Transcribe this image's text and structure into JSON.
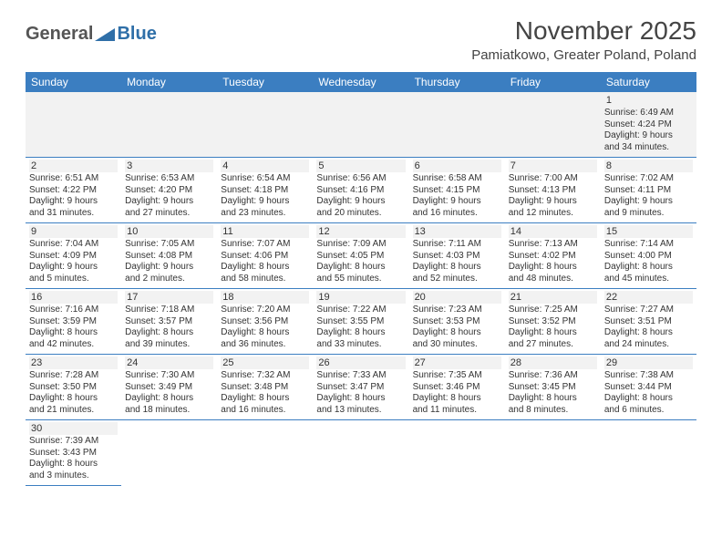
{
  "logo": {
    "text1": "General",
    "text2": "Blue"
  },
  "header": {
    "title": "November 2025",
    "location": "Pamiatkowo, Greater Poland, Poland"
  },
  "colors": {
    "header_bg": "#3b7ec1",
    "header_text": "#ffffff",
    "row_border": "#3b7ec1",
    "daynum_bg": "#f2f2f2",
    "text": "#333333",
    "logo_blue": "#2f6fa8",
    "logo_gray": "#555555",
    "page_bg": "#ffffff"
  },
  "day_names": [
    "Sunday",
    "Monday",
    "Tuesday",
    "Wednesday",
    "Thursday",
    "Friday",
    "Saturday"
  ],
  "weeks": [
    [
      null,
      null,
      null,
      null,
      null,
      null,
      {
        "n": "1",
        "sr": "Sunrise: 6:49 AM",
        "ss": "Sunset: 4:24 PM",
        "d1": "Daylight: 9 hours",
        "d2": "and 34 minutes."
      }
    ],
    [
      {
        "n": "2",
        "sr": "Sunrise: 6:51 AM",
        "ss": "Sunset: 4:22 PM",
        "d1": "Daylight: 9 hours",
        "d2": "and 31 minutes."
      },
      {
        "n": "3",
        "sr": "Sunrise: 6:53 AM",
        "ss": "Sunset: 4:20 PM",
        "d1": "Daylight: 9 hours",
        "d2": "and 27 minutes."
      },
      {
        "n": "4",
        "sr": "Sunrise: 6:54 AM",
        "ss": "Sunset: 4:18 PM",
        "d1": "Daylight: 9 hours",
        "d2": "and 23 minutes."
      },
      {
        "n": "5",
        "sr": "Sunrise: 6:56 AM",
        "ss": "Sunset: 4:16 PM",
        "d1": "Daylight: 9 hours",
        "d2": "and 20 minutes."
      },
      {
        "n": "6",
        "sr": "Sunrise: 6:58 AM",
        "ss": "Sunset: 4:15 PM",
        "d1": "Daylight: 9 hours",
        "d2": "and 16 minutes."
      },
      {
        "n": "7",
        "sr": "Sunrise: 7:00 AM",
        "ss": "Sunset: 4:13 PM",
        "d1": "Daylight: 9 hours",
        "d2": "and 12 minutes."
      },
      {
        "n": "8",
        "sr": "Sunrise: 7:02 AM",
        "ss": "Sunset: 4:11 PM",
        "d1": "Daylight: 9 hours",
        "d2": "and 9 minutes."
      }
    ],
    [
      {
        "n": "9",
        "sr": "Sunrise: 7:04 AM",
        "ss": "Sunset: 4:09 PM",
        "d1": "Daylight: 9 hours",
        "d2": "and 5 minutes."
      },
      {
        "n": "10",
        "sr": "Sunrise: 7:05 AM",
        "ss": "Sunset: 4:08 PM",
        "d1": "Daylight: 9 hours",
        "d2": "and 2 minutes."
      },
      {
        "n": "11",
        "sr": "Sunrise: 7:07 AM",
        "ss": "Sunset: 4:06 PM",
        "d1": "Daylight: 8 hours",
        "d2": "and 58 minutes."
      },
      {
        "n": "12",
        "sr": "Sunrise: 7:09 AM",
        "ss": "Sunset: 4:05 PM",
        "d1": "Daylight: 8 hours",
        "d2": "and 55 minutes."
      },
      {
        "n": "13",
        "sr": "Sunrise: 7:11 AM",
        "ss": "Sunset: 4:03 PM",
        "d1": "Daylight: 8 hours",
        "d2": "and 52 minutes."
      },
      {
        "n": "14",
        "sr": "Sunrise: 7:13 AM",
        "ss": "Sunset: 4:02 PM",
        "d1": "Daylight: 8 hours",
        "d2": "and 48 minutes."
      },
      {
        "n": "15",
        "sr": "Sunrise: 7:14 AM",
        "ss": "Sunset: 4:00 PM",
        "d1": "Daylight: 8 hours",
        "d2": "and 45 minutes."
      }
    ],
    [
      {
        "n": "16",
        "sr": "Sunrise: 7:16 AM",
        "ss": "Sunset: 3:59 PM",
        "d1": "Daylight: 8 hours",
        "d2": "and 42 minutes."
      },
      {
        "n": "17",
        "sr": "Sunrise: 7:18 AM",
        "ss": "Sunset: 3:57 PM",
        "d1": "Daylight: 8 hours",
        "d2": "and 39 minutes."
      },
      {
        "n": "18",
        "sr": "Sunrise: 7:20 AM",
        "ss": "Sunset: 3:56 PM",
        "d1": "Daylight: 8 hours",
        "d2": "and 36 minutes."
      },
      {
        "n": "19",
        "sr": "Sunrise: 7:22 AM",
        "ss": "Sunset: 3:55 PM",
        "d1": "Daylight: 8 hours",
        "d2": "and 33 minutes."
      },
      {
        "n": "20",
        "sr": "Sunrise: 7:23 AM",
        "ss": "Sunset: 3:53 PM",
        "d1": "Daylight: 8 hours",
        "d2": "and 30 minutes."
      },
      {
        "n": "21",
        "sr": "Sunrise: 7:25 AM",
        "ss": "Sunset: 3:52 PM",
        "d1": "Daylight: 8 hours",
        "d2": "and 27 minutes."
      },
      {
        "n": "22",
        "sr": "Sunrise: 7:27 AM",
        "ss": "Sunset: 3:51 PM",
        "d1": "Daylight: 8 hours",
        "d2": "and 24 minutes."
      }
    ],
    [
      {
        "n": "23",
        "sr": "Sunrise: 7:28 AM",
        "ss": "Sunset: 3:50 PM",
        "d1": "Daylight: 8 hours",
        "d2": "and 21 minutes."
      },
      {
        "n": "24",
        "sr": "Sunrise: 7:30 AM",
        "ss": "Sunset: 3:49 PM",
        "d1": "Daylight: 8 hours",
        "d2": "and 18 minutes."
      },
      {
        "n": "25",
        "sr": "Sunrise: 7:32 AM",
        "ss": "Sunset: 3:48 PM",
        "d1": "Daylight: 8 hours",
        "d2": "and 16 minutes."
      },
      {
        "n": "26",
        "sr": "Sunrise: 7:33 AM",
        "ss": "Sunset: 3:47 PM",
        "d1": "Daylight: 8 hours",
        "d2": "and 13 minutes."
      },
      {
        "n": "27",
        "sr": "Sunrise: 7:35 AM",
        "ss": "Sunset: 3:46 PM",
        "d1": "Daylight: 8 hours",
        "d2": "and 11 minutes."
      },
      {
        "n": "28",
        "sr": "Sunrise: 7:36 AM",
        "ss": "Sunset: 3:45 PM",
        "d1": "Daylight: 8 hours",
        "d2": "and 8 minutes."
      },
      {
        "n": "29",
        "sr": "Sunrise: 7:38 AM",
        "ss": "Sunset: 3:44 PM",
        "d1": "Daylight: 8 hours",
        "d2": "and 6 minutes."
      }
    ],
    [
      {
        "n": "30",
        "sr": "Sunrise: 7:39 AM",
        "ss": "Sunset: 3:43 PM",
        "d1": "Daylight: 8 hours",
        "d2": "and 3 minutes."
      },
      null,
      null,
      null,
      null,
      null,
      null
    ]
  ]
}
